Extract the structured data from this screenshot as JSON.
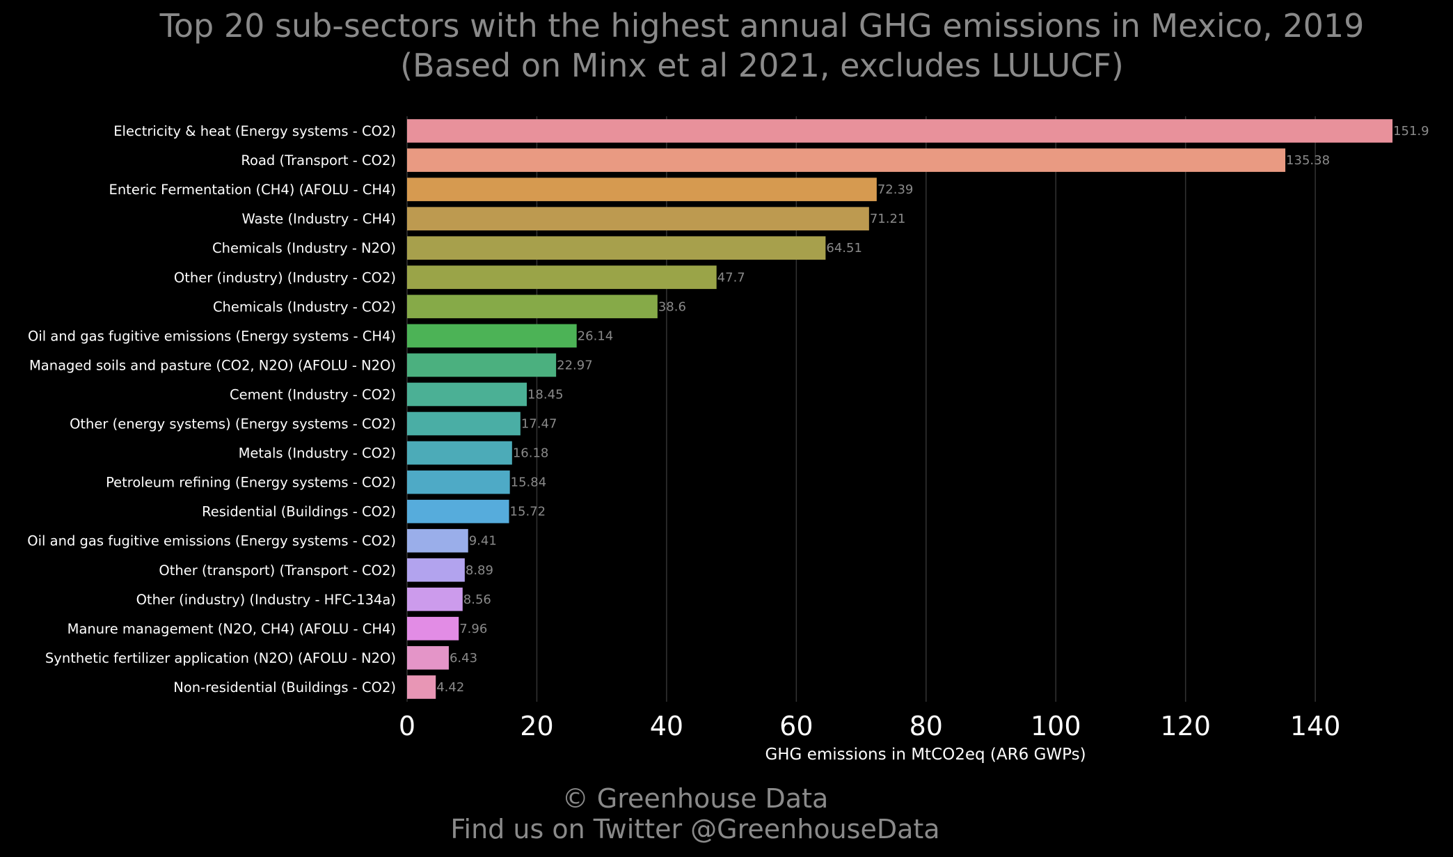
{
  "chart_data": {
    "type": "bar",
    "orientation": "horizontal",
    "title": "Top 20 sub-sectors with the highest annual GHG emissions in Mexico, 2019",
    "subtitle": "(Based on Minx et al 2021, excludes LULUCF)",
    "xlabel": "GHG emissions in MtCO2eq (AR6 GWPs)",
    "ylabel": "",
    "xlim": [
      0,
      152
    ],
    "xticks": [
      0,
      20,
      40,
      60,
      80,
      100,
      120,
      140
    ],
    "grid": "vertical",
    "categories": [
      "Electricity & heat (Energy systems - CO2)",
      "Road (Transport - CO2)",
      "Enteric Fermentation (CH4) (AFOLU - CH4)",
      "Waste (Industry - CH4)",
      "Chemicals (Industry - N2O)",
      "Other (industry) (Industry - CO2)",
      "Chemicals (Industry - CO2)",
      "Oil and gas fugitive emissions (Energy systems - CH4)",
      "Managed soils and pasture (CO2, N2O) (AFOLU - N2O)",
      "Cement (Industry - CO2)",
      "Other (energy systems) (Energy systems - CO2)",
      "Metals (Industry - CO2)",
      "Petroleum refining (Energy systems - CO2)",
      "Residential (Buildings - CO2)",
      "Oil and gas fugitive emissions (Energy systems - CO2)",
      "Other (transport) (Transport - CO2)",
      "Other (industry) (Industry - HFC-134a)",
      "Manure management (N2O, CH4) (AFOLU - CH4)",
      "Synthetic fertilizer application (N2O) (AFOLU - N2O)",
      "Non-residential (Buildings - CO2)"
    ],
    "values": [
      151.9,
      135.38,
      72.39,
      71.21,
      64.51,
      47.7,
      38.6,
      26.14,
      22.97,
      18.45,
      17.47,
      16.18,
      15.84,
      15.72,
      9.41,
      8.89,
      8.56,
      7.96,
      6.43,
      4.42
    ],
    "value_labels": [
      "151.9",
      "135.38",
      "72.39",
      "71.21",
      "64.51",
      "47.7",
      "38.6",
      "26.14",
      "22.97",
      "18.45",
      "17.47",
      "16.18",
      "15.84",
      "15.72",
      "9.41",
      "8.89",
      "8.56",
      "7.96",
      "6.43",
      "4.42"
    ],
    "colors": [
      "#e8919b",
      "#e99a82",
      "#d69a50",
      "#bd9a50",
      "#a7a04c",
      "#9aa448",
      "#86aa48",
      "#4cb356",
      "#4bb07f",
      "#4bb095",
      "#4aaea5",
      "#4cabb8",
      "#4eaac6",
      "#56acdc",
      "#9aaeea",
      "#b2a3ee",
      "#cc9bec",
      "#e28ce5",
      "#e495c8",
      "#e896b5"
    ]
  },
  "footer": {
    "line1": "© Greenhouse Data",
    "line2": "Find us on Twitter @GreenhouseData"
  },
  "colors": {
    "background": "#000000",
    "title_text": "#8a8a8a",
    "label_text": "#ffffff",
    "value_text": "#8a8a8a",
    "grid": "#333333"
  }
}
